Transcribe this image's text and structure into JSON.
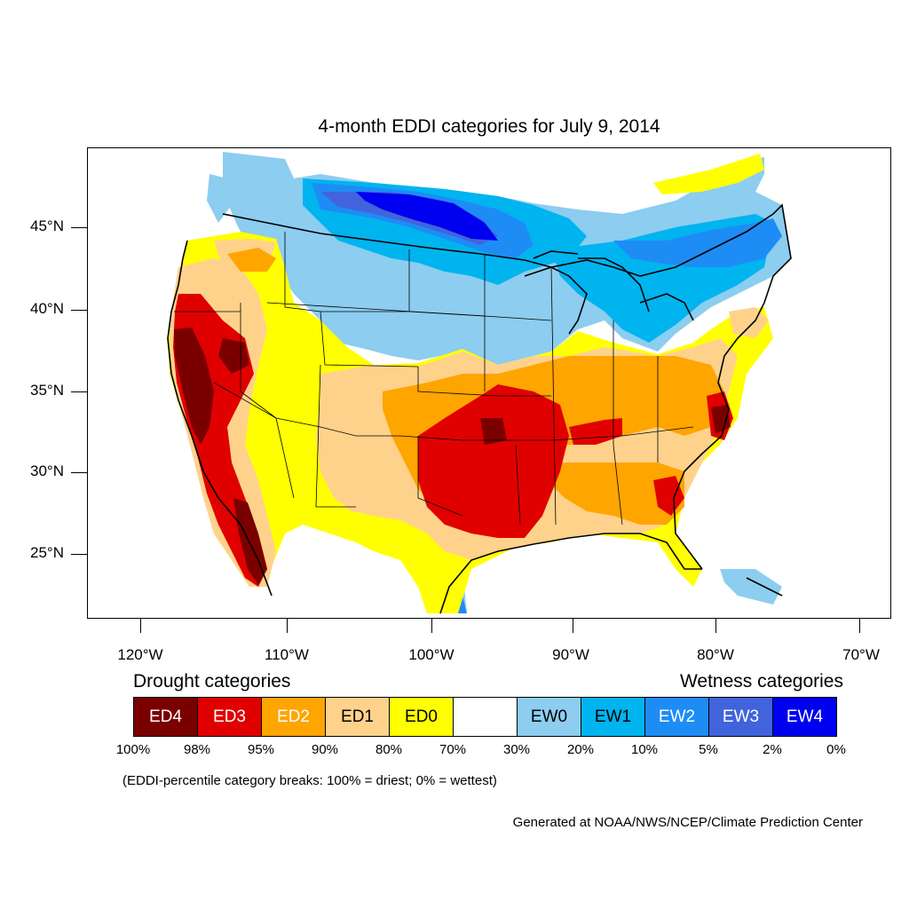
{
  "title": "4-month EDDI categories for July 9, 2014",
  "lat_labels": [
    "45°N",
    "40°N",
    "35°N",
    "30°N",
    "25°N"
  ],
  "lon_labels": [
    "120°W",
    "110°W",
    "100°W",
    "90°W",
    "80°W",
    "70°W"
  ],
  "legend": {
    "drought_heading": "Drought categories",
    "wetness_heading": "Wetness categories",
    "categories": [
      {
        "label": "ED4",
        "color": "#7a0000",
        "text_color": "#ffffff"
      },
      {
        "label": "ED3",
        "color": "#e00000",
        "text_color": "#ffffff"
      },
      {
        "label": "ED2",
        "color": "#ffa500",
        "text_color": "#ffffff"
      },
      {
        "label": "ED1",
        "color": "#ffd28c",
        "text_color": "#000000"
      },
      {
        "label": "ED0",
        "color": "#ffff00",
        "text_color": "#000000"
      },
      {
        "label": "",
        "color": "#ffffff",
        "text_color": "#000000"
      },
      {
        "label": "EW0",
        "color": "#8ccdf0",
        "text_color": "#000000"
      },
      {
        "label": "EW1",
        "color": "#00b4f0",
        "text_color": "#000000"
      },
      {
        "label": "EW2",
        "color": "#1e8cf5",
        "text_color": "#ffffff"
      },
      {
        "label": "EW3",
        "color": "#4164dc",
        "text_color": "#ffffff"
      },
      {
        "label": "EW4",
        "color": "#0000f0",
        "text_color": "#ffffff"
      }
    ],
    "percentiles": [
      "100%",
      "98%",
      "95%",
      "90%",
      "80%",
      "70%",
      "30%",
      "20%",
      "10%",
      "5%",
      "2%",
      "0%"
    ]
  },
  "note": "(EDDI-percentile category breaks: 100% = driest; 0% = wettest)",
  "credit": "Generated at NOAA/NWS/NCEP/Climate Prediction Center"
}
